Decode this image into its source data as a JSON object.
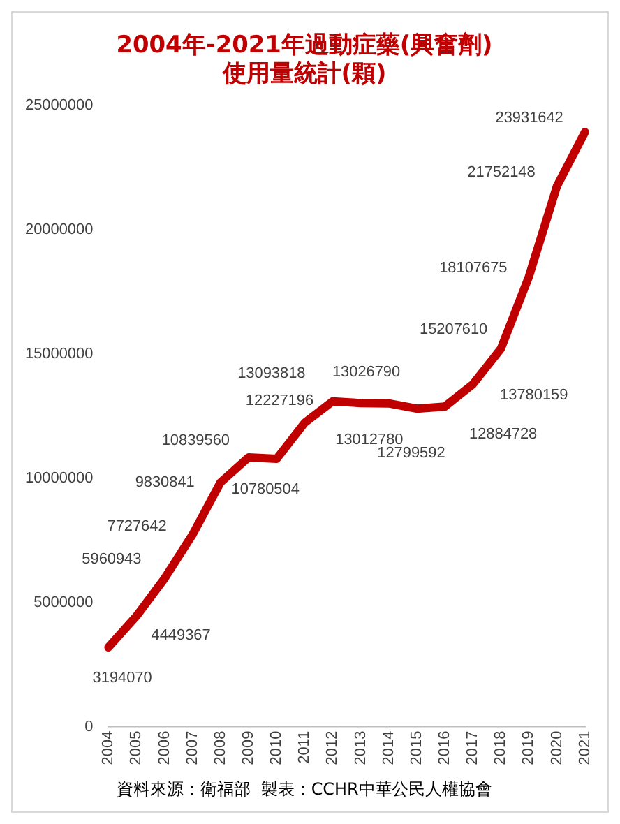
{
  "chart_data": {
    "type": "line",
    "title": "2004年-2021年過動症藥(興奮劑)\n使用量統計(顆)",
    "categories": [
      "2004",
      "2005",
      "2006",
      "2007",
      "2008",
      "2009",
      "2010",
      "2011",
      "2012",
      "2013",
      "2014",
      "2015",
      "2016",
      "2017",
      "2018",
      "2019",
      "2020",
      "2021"
    ],
    "series": [
      {
        "color": "#c00000",
        "values": [
          3194070,
          4449367,
          5960943,
          7727642,
          9830841,
          10839560,
          10780504,
          12227196,
          13093818,
          13026790,
          13012780,
          12799592,
          12884728,
          13780159,
          15207610,
          18107675,
          21752148,
          23931642
        ]
      }
    ],
    "ylim": [
      0,
      25000000
    ],
    "yticks": [
      0,
      5000000,
      10000000,
      15000000,
      20000000,
      25000000
    ],
    "grid": false,
    "legend": false,
    "marker": "none",
    "line_style": "solid",
    "data_labels": true,
    "annotations": [
      "資料來源：衛福部  製表：CCHR中華公民人權協會"
    ]
  }
}
